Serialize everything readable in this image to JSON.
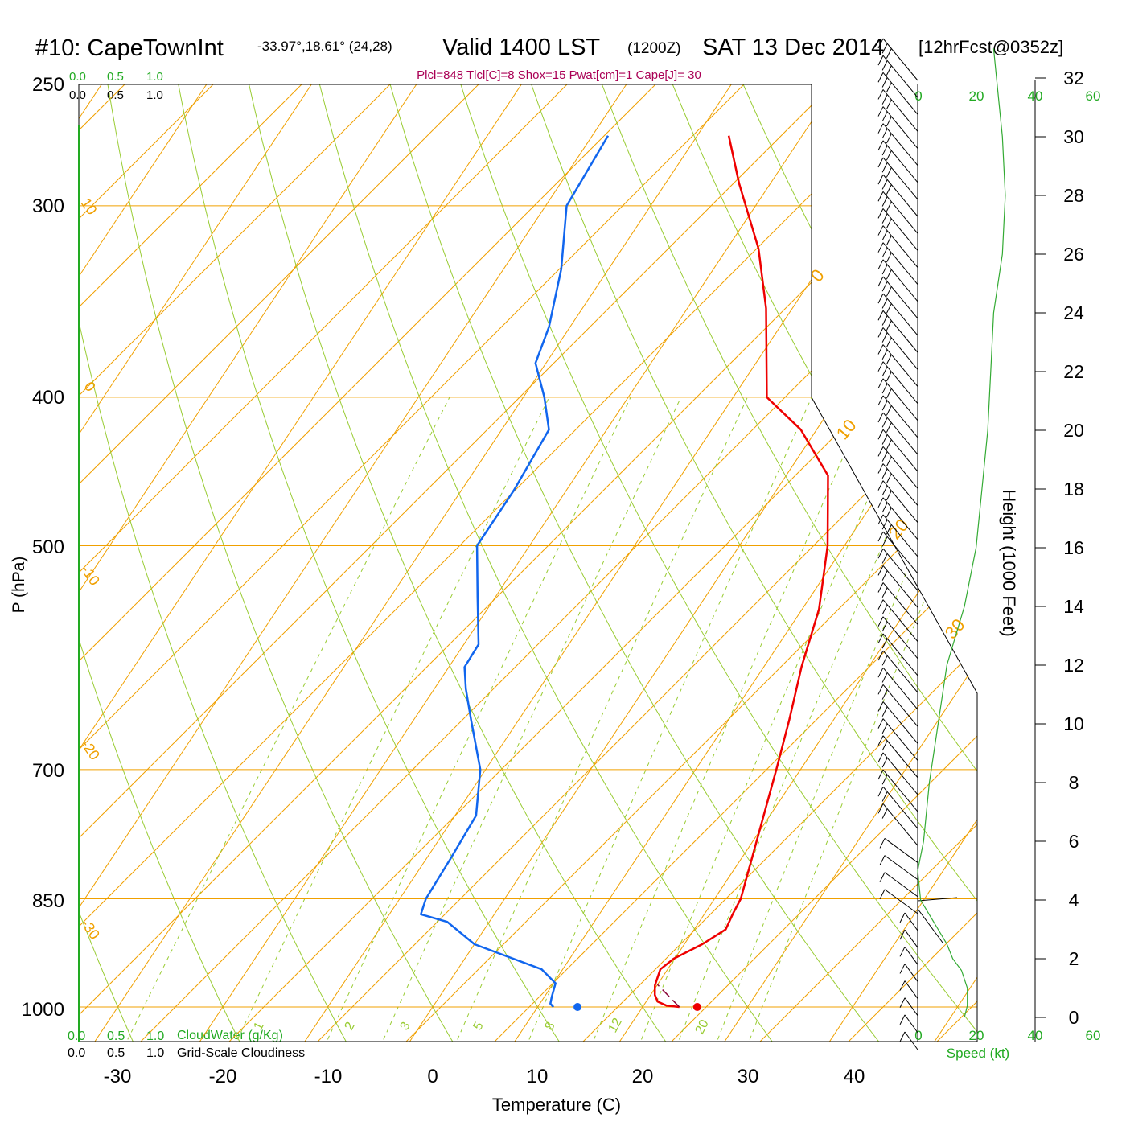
{
  "header": {
    "station": "#10: CapeTownInt",
    "coords": "-33.97°,18.61° (24,28)",
    "valid": "Valid 1400 LST",
    "utc": "(1200Z)",
    "date": "SAT 13 Dec 2014",
    "forecast": "[12hrFcst@0352z]"
  },
  "indices": "Plcl=848 Tlcl[C]=8 Shox=15 Pwat[cm]=1 Cape[J]= 30",
  "cloud_scale": {
    "ticks": [
      "0.0",
      "0.5",
      "1.0"
    ],
    "cloudwater_label": "CloudWater (g/Kg)",
    "cloudiness_label": "Grid-Scale Cloudiness"
  },
  "colors": {
    "isotherm": "#f0a000",
    "dry_adiabat": "#99cc33",
    "mixing_ratio": "#99cc33",
    "temperature": "#ee0000",
    "dewpoint": "#1166ee",
    "parcel": "#880033",
    "wind_speed": "#33aa33",
    "green_text": "#22aa22",
    "magenta_text": "#aa0055"
  },
  "chart_data": {
    "type": "line",
    "xlabel": "Temperature (C)",
    "ylabel": "P (hPa)",
    "y2label": "Height (1000 Feet)",
    "x_ticks": [
      -30,
      -20,
      -10,
      0,
      10,
      20,
      30,
      40
    ],
    "p_ticks": [
      250,
      300,
      400,
      500,
      700,
      850,
      1000
    ],
    "height_ticks": [
      0,
      2,
      4,
      6,
      8,
      10,
      12,
      14,
      16,
      18,
      20,
      22,
      24,
      26,
      28,
      30,
      32
    ],
    "isotherm_labels": [
      "10",
      "0",
      "-10",
      "-20",
      "-30",
      "0",
      "10",
      "20",
      "30"
    ],
    "mixing_ratio_labels": [
      "1",
      "2",
      "3",
      "5",
      "8",
      "12",
      "20"
    ],
    "speed_ticks_top": [
      "0",
      "20",
      "40",
      "60"
    ],
    "speed_ticks_bottom": [
      "0",
      "20",
      "40",
      "60"
    ],
    "speed_label": "Speed (kt)",
    "series": [
      {
        "key": "temperature",
        "x": [
          23.5,
          22.2,
          21.1,
          20.4,
          19.8,
          19.3,
          19.9,
          21.7,
          23.0,
          22.7,
          22.5,
          21.0,
          19.4,
          17.7,
          15.8,
          13.6,
          11.6,
          8.4,
          4.0,
          -1.5,
          -6.8,
          -12.5,
          -17.0,
          -23.0,
          -27.0
        ],
        "p": [
          1000,
          998,
          992,
          982,
          968,
          945,
          930,
          910,
          890,
          870,
          850,
          800,
          750,
          700,
          650,
          600,
          550,
          500,
          450,
          420,
          400,
          350,
          320,
          290,
          270
        ]
      },
      {
        "key": "dewpoint",
        "x": [
          11.5,
          11.0,
          10.7,
          10.2,
          8.0,
          0.0,
          -4.0,
          -7.0,
          -7.5,
          -7.7,
          -8.0,
          -10.5,
          -14.5,
          -17.0,
          -18.5,
          -18.6,
          -21.7,
          -25.0,
          -25.0,
          -25.5,
          -28.0,
          -31.0,
          -32.0,
          -34.5,
          -38.0,
          -38.5
        ],
        "p": [
          1000,
          995,
          985,
          965,
          945,
          910,
          880,
          870,
          850,
          800,
          750,
          700,
          650,
          620,
          600,
          580,
          540,
          500,
          460,
          420,
          400,
          380,
          360,
          330,
          300,
          270
        ]
      },
      {
        "key": "parcel",
        "x": [
          23.5,
          20.0
        ],
        "p": [
          1000,
          967
        ]
      }
    ],
    "surface_points": [
      {
        "key": "temperature",
        "x": 25.2,
        "p": 1000
      },
      {
        "key": "dewpoint",
        "x": 13.8,
        "p": 1000
      }
    ],
    "wind_speed": {
      "height_kft": [
        0,
        0.4,
        1,
        1.6,
        2,
        2.5,
        3,
        3.5,
        4,
        5,
        6,
        8,
        10,
        12,
        14,
        16,
        18,
        20,
        22,
        24,
        26,
        28,
        30,
        32,
        33
      ],
      "speed_kt": [
        16,
        17,
        17,
        15,
        12,
        10,
        7,
        4,
        1,
        0,
        2,
        4,
        7,
        10,
        16,
        20,
        22,
        24,
        25,
        26,
        29,
        30,
        29,
        27,
        26
      ]
    },
    "wind_barb_count": 58
  }
}
